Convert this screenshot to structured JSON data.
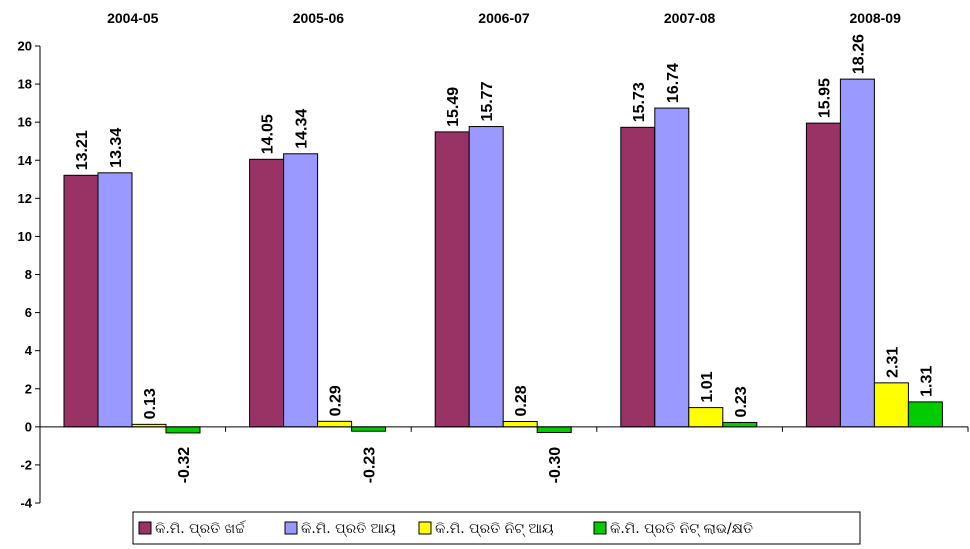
{
  "chart_data": {
    "type": "bar",
    "categories": [
      "2004-05",
      "2005-06",
      "2006-07",
      "2007-08",
      "2008-09"
    ],
    "series": [
      {
        "name": "କି.ମି. ପ୍ରତି ଖର୍ଚ୍ଚ",
        "color": "#993366",
        "values": [
          13.21,
          14.05,
          15.49,
          15.73,
          15.95
        ],
        "labels": [
          "13.21",
          "14.05",
          "15.49",
          "15.73",
          "15.95"
        ]
      },
      {
        "name": "କି.ମି. ପ୍ରତି ଆୟ",
        "color": "#9999ff",
        "values": [
          13.34,
          14.34,
          15.77,
          16.74,
          18.26
        ],
        "labels": [
          "13.34",
          "14.34",
          "15.77",
          "16.74",
          "18.26"
        ]
      },
      {
        "name": "କି.ମି. ପ୍ରତି ନିଟ୍ ଆୟ",
        "color": "#ffff00",
        "values": [
          0.13,
          0.29,
          0.28,
          1.01,
          2.31
        ],
        "labels": [
          "0.13",
          "0.29",
          "0.28",
          "1.01",
          "2.31"
        ]
      },
      {
        "name": "କି.ମି. ପ୍ରତି ନିଟ୍ ଲାଭ/କ୍ଷତି",
        "color": "#00cc00",
        "values": [
          -0.32,
          -0.23,
          -0.3,
          0.23,
          1.31
        ],
        "labels": [
          "-0.32",
          "-0.23",
          "-0.30",
          "0.23",
          "1.31"
        ]
      }
    ],
    "y_ticks": [
      "-4",
      "-2",
      "0",
      "2",
      "4",
      "6",
      "8",
      "10",
      "12",
      "14",
      "16",
      "18",
      "20"
    ],
    "ylim": [
      -4,
      20
    ],
    "title": "",
    "xlabel": "",
    "ylabel": "",
    "category_labels_position": "top",
    "grid": false,
    "legend_position": "bottom"
  }
}
